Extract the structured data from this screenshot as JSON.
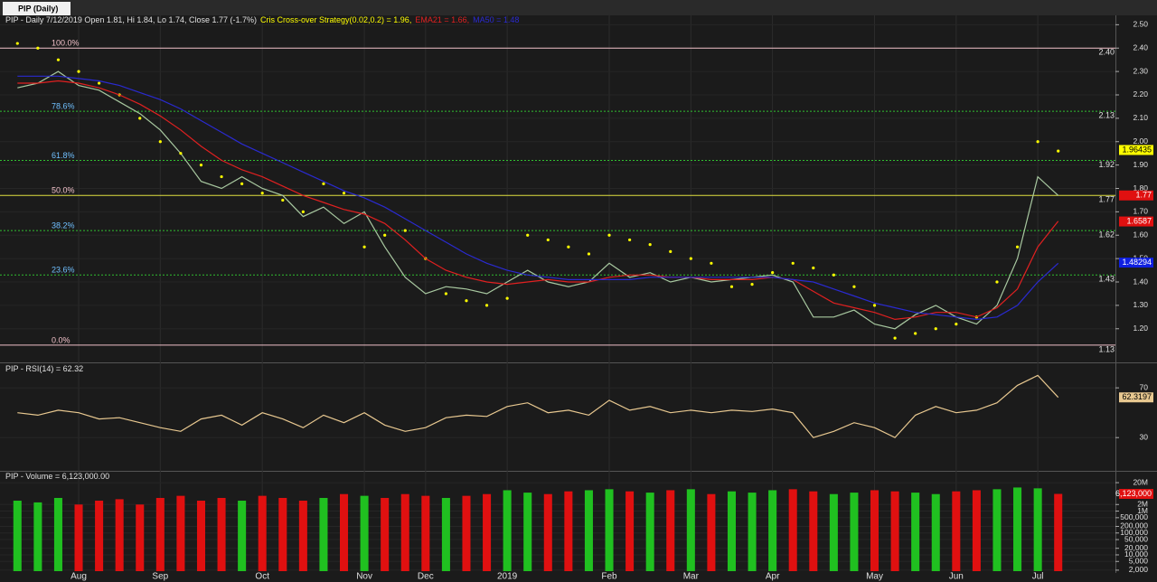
{
  "tab": "PIP (Daily)",
  "chart_data": [
    {
      "type": "line",
      "title": "PIP - Daily 7/12/2019 Open 1.81, Hi 1.84, Lo 1.74, Close 1.77 (-1.7%)",
      "categories": [
        null,
        null,
        null,
        "Aug",
        null,
        null,
        null,
        "Sep",
        null,
        null,
        null,
        null,
        "Oct",
        null,
        null,
        null,
        null,
        "Nov",
        null,
        null,
        "Dec",
        null,
        null,
        null,
        "2019",
        null,
        null,
        null,
        null,
        "Feb",
        null,
        null,
        null,
        "Mar",
        null,
        null,
        null,
        "Apr",
        null,
        null,
        null,
        null,
        "May",
        null,
        null,
        null,
        "Jun",
        null,
        null,
        null,
        "Jul",
        null
      ],
      "series": [
        {
          "name": "Close",
          "style": "line",
          "color": "#a8c8a0",
          "values": [
            2.23,
            2.25,
            2.3,
            2.24,
            2.22,
            2.17,
            2.12,
            2.05,
            1.95,
            1.83,
            1.8,
            1.85,
            1.8,
            1.77,
            1.68,
            1.72,
            1.65,
            1.7,
            1.55,
            1.42,
            1.35,
            1.38,
            1.37,
            1.35,
            1.4,
            1.45,
            1.4,
            1.38,
            1.4,
            1.48,
            1.42,
            1.44,
            1.4,
            1.42,
            1.4,
            1.41,
            1.42,
            1.43,
            1.4,
            1.25,
            1.25,
            1.28,
            1.22,
            1.2,
            1.26,
            1.3,
            1.25,
            1.22,
            1.3,
            1.5,
            1.85,
            1.77
          ]
        },
        {
          "name": "Cris Cross-over Strategy(0.02,0.2)",
          "legend_label": "Cris Cross-over Strategy(0.02,0.2) = 1.96,",
          "style": "dots",
          "color": "#ffff00",
          "values": [
            2.42,
            2.4,
            2.35,
            2.3,
            2.25,
            2.2,
            2.1,
            2.0,
            1.95,
            1.9,
            1.85,
            1.82,
            1.78,
            1.75,
            1.7,
            1.82,
            1.78,
            1.55,
            1.6,
            1.62,
            1.5,
            1.35,
            1.32,
            1.3,
            1.33,
            1.6,
            1.58,
            1.55,
            1.52,
            1.6,
            1.58,
            1.56,
            1.53,
            1.5,
            1.48,
            1.38,
            1.39,
            1.44,
            1.48,
            1.46,
            1.43,
            1.38,
            1.3,
            1.16,
            1.18,
            1.2,
            1.22,
            1.25,
            1.4,
            1.55,
            2.0,
            1.96
          ]
        },
        {
          "name": "EMA21",
          "legend_label": "EMA21 = 1.66,",
          "style": "line",
          "color": "#e02020",
          "values": [
            2.25,
            2.25,
            2.26,
            2.25,
            2.23,
            2.2,
            2.16,
            2.11,
            2.05,
            1.98,
            1.92,
            1.88,
            1.85,
            1.81,
            1.77,
            1.74,
            1.71,
            1.69,
            1.65,
            1.58,
            1.5,
            1.45,
            1.42,
            1.4,
            1.39,
            1.4,
            1.41,
            1.4,
            1.4,
            1.42,
            1.43,
            1.43,
            1.42,
            1.42,
            1.41,
            1.41,
            1.41,
            1.42,
            1.41,
            1.36,
            1.31,
            1.29,
            1.27,
            1.24,
            1.25,
            1.27,
            1.27,
            1.25,
            1.29,
            1.37,
            1.55,
            1.66
          ]
        },
        {
          "name": "MA50",
          "legend_label": "MA50 = 1.48",
          "style": "line",
          "color": "#2a2ad0",
          "values": [
            2.28,
            2.28,
            2.28,
            2.27,
            2.26,
            2.24,
            2.21,
            2.18,
            2.14,
            2.09,
            2.04,
            1.99,
            1.95,
            1.91,
            1.87,
            1.83,
            1.79,
            1.76,
            1.72,
            1.67,
            1.62,
            1.57,
            1.52,
            1.48,
            1.45,
            1.43,
            1.42,
            1.41,
            1.41,
            1.41,
            1.41,
            1.42,
            1.42,
            1.42,
            1.42,
            1.42,
            1.42,
            1.42,
            1.41,
            1.4,
            1.37,
            1.34,
            1.31,
            1.29,
            1.27,
            1.26,
            1.25,
            1.24,
            1.25,
            1.3,
            1.4,
            1.48
          ]
        }
      ],
      "ylim": [
        1.06,
        2.54
      ],
      "yticks": [
        {
          "value": 1.2,
          "label": "1.20"
        },
        {
          "value": 1.3,
          "label": "1.30"
        },
        {
          "value": 1.4,
          "label": "1.40"
        },
        {
          "value": 1.5,
          "label": "1.50"
        },
        {
          "value": 1.6,
          "label": "1.60"
        },
        {
          "value": 1.7,
          "label": "1.70"
        },
        {
          "value": 1.8,
          "label": "1.80"
        },
        {
          "value": 1.9,
          "label": "1.90"
        },
        {
          "value": 2.0,
          "label": "2.00"
        },
        {
          "value": 2.1,
          "label": "2.10"
        },
        {
          "value": 2.2,
          "label": "2.20"
        },
        {
          "value": 2.3,
          "label": "2.30"
        },
        {
          "value": 2.4,
          "label": "2.40"
        },
        {
          "value": 2.5,
          "label": "2.50"
        }
      ],
      "fib_levels": [
        {
          "label": "100.0%",
          "value": 2.4,
          "value_label": "2.40",
          "color": "#f0c0c8",
          "style": "solid"
        },
        {
          "label": "78.6%",
          "value": 2.13,
          "value_label": "2.13",
          "color": "#30c030",
          "style": "dotted"
        },
        {
          "label": "61.8%",
          "value": 1.92,
          "value_label": "1.92",
          "color": "#30c030",
          "style": "dotted"
        },
        {
          "label": "50.0%",
          "value": 1.77,
          "value_label": "1.77",
          "color": "#e0e040",
          "style": "solid"
        },
        {
          "label": "38.2%",
          "value": 1.62,
          "value_label": "1.62",
          "color": "#30c030",
          "style": "dotted"
        },
        {
          "label": "23.6%",
          "value": 1.43,
          "value_label": "1.43",
          "color": "#30c030",
          "style": "dotted"
        },
        {
          "label": "0.0%",
          "value": 1.13,
          "value_label": "1.13",
          "color": "#f0c0c8",
          "style": "solid"
        }
      ],
      "badges": [
        {
          "value": 1.96435,
          "color": "#ffff00",
          "text_color": "#000000"
        },
        {
          "value": 1.77,
          "color": "#e01010",
          "text_color": "#ffffff"
        },
        {
          "value": 1.6587,
          "color": "#e01010",
          "text_color": "#ffffff"
        },
        {
          "value": 1.48294,
          "color": "#1020e0",
          "text_color": "#ffffff"
        }
      ]
    },
    {
      "type": "line",
      "title": "PIP - RSI(14) = 62.32",
      "series": [
        {
          "name": "RSI(14)",
          "color": "#e8c890",
          "values": [
            50,
            48,
            52,
            50,
            45,
            46,
            42,
            38,
            35,
            45,
            48,
            40,
            50,
            45,
            38,
            48,
            42,
            50,
            40,
            35,
            38,
            46,
            48,
            47,
            55,
            58,
            50,
            52,
            48,
            60,
            52,
            55,
            50,
            52,
            50,
            52,
            51,
            53,
            50,
            30,
            35,
            42,
            38,
            30,
            48,
            55,
            50,
            52,
            58,
            72,
            80,
            62.32
          ]
        }
      ],
      "ylim": [
        4,
        89
      ],
      "yticks": [
        30,
        70
      ],
      "badges": [
        {
          "value": 62.3197,
          "color": "#e8c890",
          "text_color": "#000000"
        }
      ]
    },
    {
      "type": "bar",
      "title": "PIP - Volume = 6,123,000.00",
      "log": true,
      "up_color": "#20c020",
      "down_color": "#e01010",
      "values": [
        3000000,
        2500000,
        4000000,
        2000000,
        3000000,
        3500000,
        2000000,
        4000000,
        5000000,
        3000000,
        4000000,
        3000000,
        5000000,
        4000000,
        3000000,
        4000000,
        6000000,
        5000000,
        4000000,
        6000000,
        5000000,
        4000000,
        5000000,
        6000000,
        9000000,
        7000000,
        6000000,
        8000000,
        9000000,
        10000000,
        8000000,
        7000000,
        9000000,
        10000000,
        6000000,
        8000000,
        7000000,
        9000000,
        10000000,
        8000000,
        6000000,
        7000000,
        9000000,
        8000000,
        7000000,
        6000000,
        8000000,
        9000000,
        10000000,
        12000000,
        11000000,
        6123000
      ],
      "ylim": [
        1800,
        63000000
      ],
      "yticks": [
        {
          "value": 20000000,
          "label": "20M"
        },
        {
          "value": 2000000,
          "label": "2M"
        },
        {
          "value": 1000000,
          "label": "1M"
        },
        {
          "value": 500000,
          "label": "500,000"
        },
        {
          "value": 200000,
          "label": "200,000"
        },
        {
          "value": 100000,
          "label": "100,000"
        },
        {
          "value": 50000,
          "label": "50,000"
        },
        {
          "value": 20000,
          "label": "20,000"
        },
        {
          "value": 10000,
          "label": "10,000"
        },
        {
          "value": 5000,
          "label": "5,000"
        },
        {
          "value": 2000,
          "label": "2,000"
        }
      ],
      "badges": [
        {
          "value": 6123000,
          "label": "6,123,000",
          "color": "#e01010",
          "text_color": "#ffffff"
        }
      ]
    }
  ]
}
